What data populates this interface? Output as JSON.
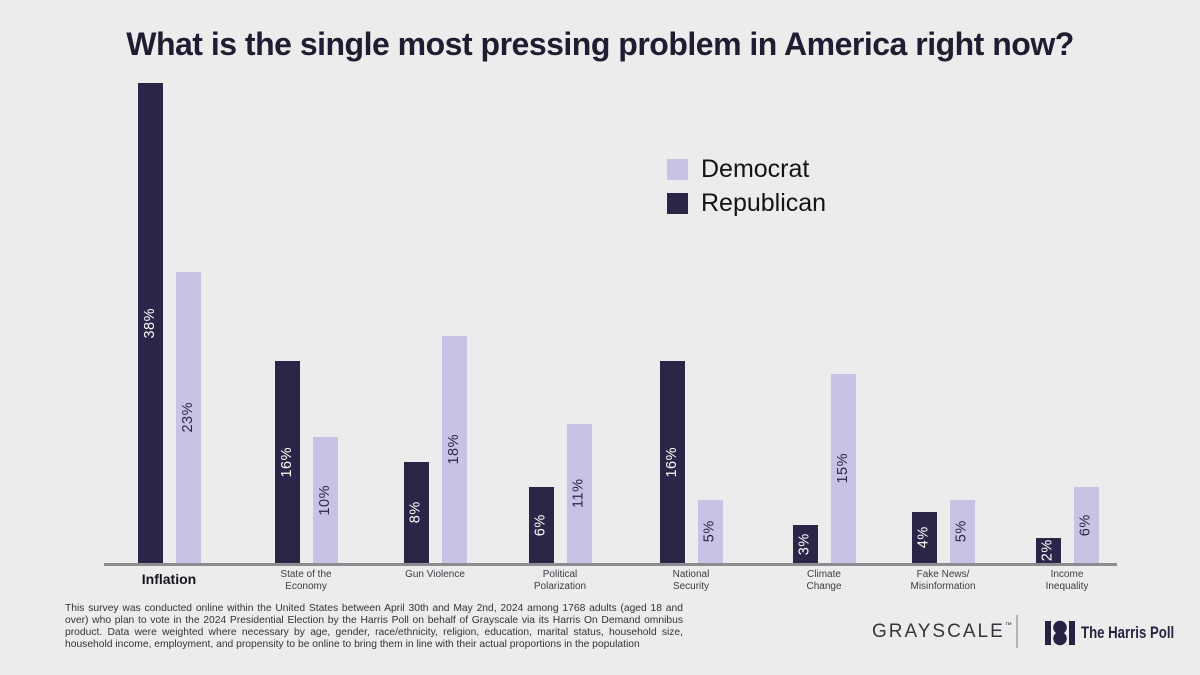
{
  "title": "What is the single most pressing problem in America right now?",
  "legend": {
    "position": "upper right of plot",
    "items": [
      {
        "label": "Democrat",
        "color": "#c8c3e4"
      },
      {
        "label": "Republican",
        "color": "#2d2547"
      }
    ]
  },
  "chart_data": {
    "type": "bar",
    "title": "What is the single most pressing problem in America right now?",
    "categories": [
      "Inflation",
      "State of the\nEconomy",
      "Gun Violence",
      "Political\nPolarization",
      "National\nSecurity",
      "Climate\nChange",
      "Fake News/\nMisinformation",
      "Income\nInequality"
    ],
    "series": [
      {
        "name": "Republican",
        "color": "#2d2547",
        "label_color": "#ffffff",
        "values": [
          38,
          16,
          8,
          6,
          16,
          3,
          4,
          2
        ]
      },
      {
        "name": "Democrat",
        "color": "#c8c3e4",
        "label_color": "#2d2547",
        "values": [
          23,
          10,
          18,
          11,
          5,
          15,
          5,
          6
        ]
      }
    ],
    "bar_order_in_group": [
      "Republican",
      "Democrat"
    ],
    "value_label_format": "{value}%",
    "value_label_style": "rotated 90° counter-clockwise, centered inside bar",
    "ylim": [
      0,
      40
    ],
    "grid": false,
    "y_axis": "hidden (no ticks, no gridlines)",
    "x_axis": "baseline only",
    "xlabel": "",
    "ylabel": ""
  },
  "footnote": "This survey was conducted online within the United States between April 30th and May 2nd, 2024 among 1768 adults (aged 18 and over) who plan to vote in the 2024 Presidential Election by the Harris Poll on behalf of Grayscale via its Harris On Demand omnibus product. Data were weighted where necessary by age, gender, race/ethnicity, religion, education, marital status, household size, household income, employment, and propensity to be online to bring them in line with their actual proportions in the population",
  "logos": {
    "grayscale": "GRAYSCALE",
    "grayscale_mark": "™",
    "harris_poll": "The Harris Poll",
    "harris_icon": "harris-poll-monogram"
  },
  "colors": {
    "background": "#ececec",
    "democrat": "#c8c3e4",
    "republican": "#2d2547",
    "title_text": "#201c31",
    "axis_line": "#8d8d91"
  }
}
